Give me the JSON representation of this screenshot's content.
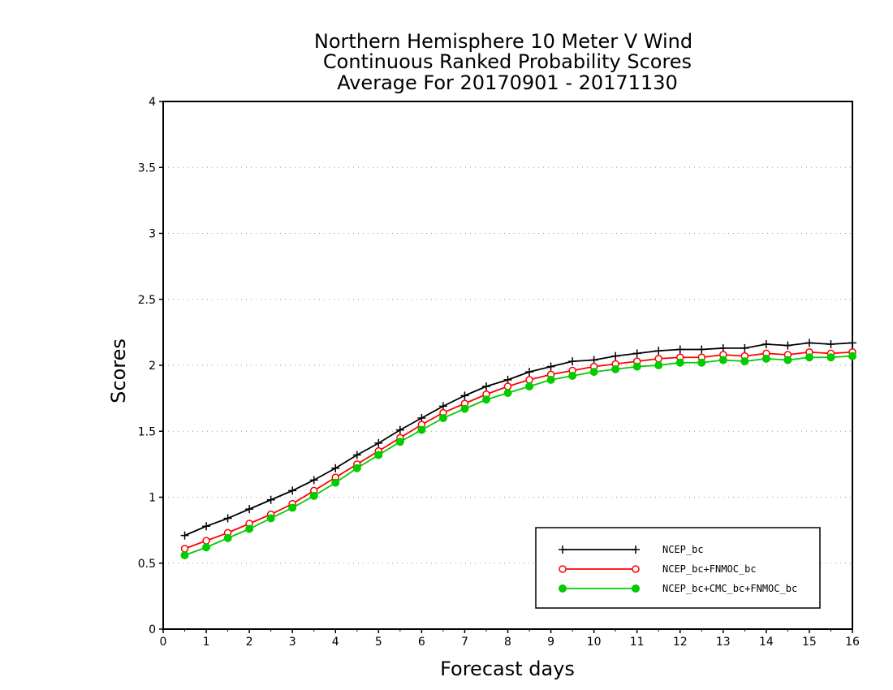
{
  "chart_data": {
    "type": "line",
    "title": [
      "Northern Hemisphere 10 Meter V Wind",
      "Continuous Ranked Probability Scores",
      "Average For 20170901 - 20171130"
    ],
    "xlabel": "Forecast days",
    "ylabel": "Scores",
    "xlim": [
      0,
      16
    ],
    "ylim": [
      0,
      4
    ],
    "xticks": [
      0,
      1,
      2,
      3,
      4,
      5,
      6,
      7,
      8,
      9,
      10,
      11,
      12,
      13,
      14,
      15,
      16
    ],
    "yticks": [
      0,
      0.5,
      1,
      1.5,
      2,
      2.5,
      3,
      3.5,
      4
    ],
    "ytick_labels": [
      "0",
      "0.5",
      "1",
      "1.5",
      "2",
      "2.5",
      "3",
      "3.5",
      "4"
    ],
    "grid": "horizontal dotted",
    "legend_position": "bottom-right",
    "x": [
      0.5,
      1,
      1.5,
      2,
      2.5,
      3,
      3.5,
      4,
      4.5,
      5,
      5.5,
      6,
      6.5,
      7,
      7.5,
      8,
      8.5,
      9,
      9.5,
      10,
      10.5,
      11,
      11.5,
      12,
      12.5,
      13,
      13.5,
      14,
      14.5,
      15,
      15.5,
      16
    ],
    "series": [
      {
        "name": "NCEP_bc",
        "color": "#000000",
        "marker": "plus",
        "values": [
          0.71,
          0.78,
          0.84,
          0.91,
          0.98,
          1.05,
          1.13,
          1.22,
          1.32,
          1.41,
          1.51,
          1.6,
          1.69,
          1.77,
          1.84,
          1.89,
          1.95,
          1.99,
          2.03,
          2.04,
          2.07,
          2.09,
          2.11,
          2.12,
          2.12,
          2.13,
          2.13,
          2.16,
          2.15,
          2.17,
          2.16,
          2.17
        ]
      },
      {
        "name": "NCEP_bc+FNMOC_bc",
        "color": "#ff0000",
        "marker": "open-circle",
        "values": [
          0.61,
          0.67,
          0.73,
          0.8,
          0.87,
          0.95,
          1.05,
          1.15,
          1.25,
          1.35,
          1.45,
          1.55,
          1.64,
          1.71,
          1.78,
          1.84,
          1.89,
          1.93,
          1.96,
          1.99,
          2.01,
          2.03,
          2.05,
          2.06,
          2.06,
          2.08,
          2.07,
          2.09,
          2.08,
          2.1,
          2.09,
          2.1
        ]
      },
      {
        "name": "NCEP_bc+CMC_bc+FNMOC_bc",
        "color": "#00cc00",
        "marker": "filled-circle",
        "values": [
          0.56,
          0.62,
          0.69,
          0.76,
          0.84,
          0.92,
          1.01,
          1.11,
          1.22,
          1.32,
          1.42,
          1.51,
          1.6,
          1.67,
          1.74,
          1.79,
          1.84,
          1.89,
          1.92,
          1.95,
          1.97,
          1.99,
          2.0,
          2.02,
          2.02,
          2.04,
          2.03,
          2.05,
          2.04,
          2.06,
          2.06,
          2.07
        ]
      }
    ]
  }
}
